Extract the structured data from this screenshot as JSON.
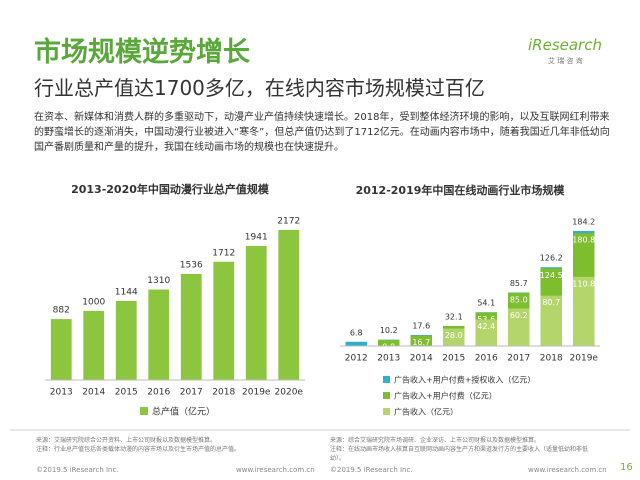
{
  "header": {
    "title": "市场规模逆势增长",
    "subtitle": "行业总产值达1700多亿，在线内容市场规模过百亿",
    "logo": "iResearch",
    "logo_sub": "艾 瑞 咨 询"
  },
  "body": "在资本、新媒体和消费人群的多重驱动下，动漫产业产值持续快速增长。2018年，受到整体经济环境的影响，以及互联网红利带来的野蛮增长的逐渐消失，中国动漫行业被进入“寒冬”，但总产值仍达到了1712亿元。在动画内容市场中，随着我国近几年非低幼向国产番剧质量和产量的提升，我国在线动画市场的规模也在快速提升。",
  "chart_data": [
    {
      "type": "bar",
      "title": "2013-2020年中国动漫行业总产值规模",
      "categories": [
        "2013",
        "2014",
        "2015",
        "2016",
        "2017",
        "2018",
        "2019e",
        "2020e"
      ],
      "series": [
        {
          "name": "总产值（亿元）",
          "color": "#8cc63f",
          "values": [
            882,
            1000,
            1144,
            1310,
            1536,
            1712,
            1941,
            2172
          ]
        }
      ]
    },
    {
      "type": "overlap-bar",
      "title": "2012-2019年中国在线动画行业市场规模",
      "categories": [
        "2012",
        "2013",
        "2014",
        "2015",
        "2016",
        "2017",
        "2018",
        "2019e"
      ],
      "series": [
        {
          "name": "广告收入+用户付费+授权收入（亿元）",
          "color": "#2fb1c9",
          "values": [
            6.8,
            10.2,
            17.6,
            32.1,
            54.1,
            85.7,
            126.2,
            184.2
          ]
        },
        {
          "name": "广告收入+用户付费（亿元）",
          "color": "#7dbd2e",
          "values": [
            null,
            9.8,
            16.7,
            32,
            53.6,
            85,
            124.5,
            180.8
          ],
          "value_labels": [
            null,
            "9.8",
            "16.7",
            "32.0",
            "53.6",
            "85.0",
            "124.5",
            "180.8"
          ]
        },
        {
          "name": "广告收入（亿元）",
          "color": "#b3d56b",
          "values": [
            null,
            null,
            null,
            28,
            42.4,
            60.2,
            80.7,
            110.8
          ],
          "value_labels": [
            null,
            null,
            null,
            "28.0",
            "42.4",
            "60.2",
            "80.7",
            "110.8"
          ]
        }
      ]
    }
  ],
  "footer": {
    "left_source": "来源：艾瑞研究院综合公开资料、上市公司财报以及数据模型推算。",
    "left_note": "注释：行业总产值包括各类载体动漫的内容市场以及衍生市场产值的总产值。",
    "right_source": "来源：综合艾瑞研究院市场调研、企业深访、上市公司财报以及数据模型推算。",
    "right_note": "注释：在线动画市场收入核算自互联网动画内容生产方和渠道发行方的主要收入（适量低幼和非低幼）。",
    "copyright_left": "©2019.5 iResearch Inc.",
    "url_left": "www.iresearch.com.cn",
    "copyright_right": "©2019.5 iResearch Inc.",
    "url_right": "www.iresearch.com.cn",
    "page": "16"
  }
}
